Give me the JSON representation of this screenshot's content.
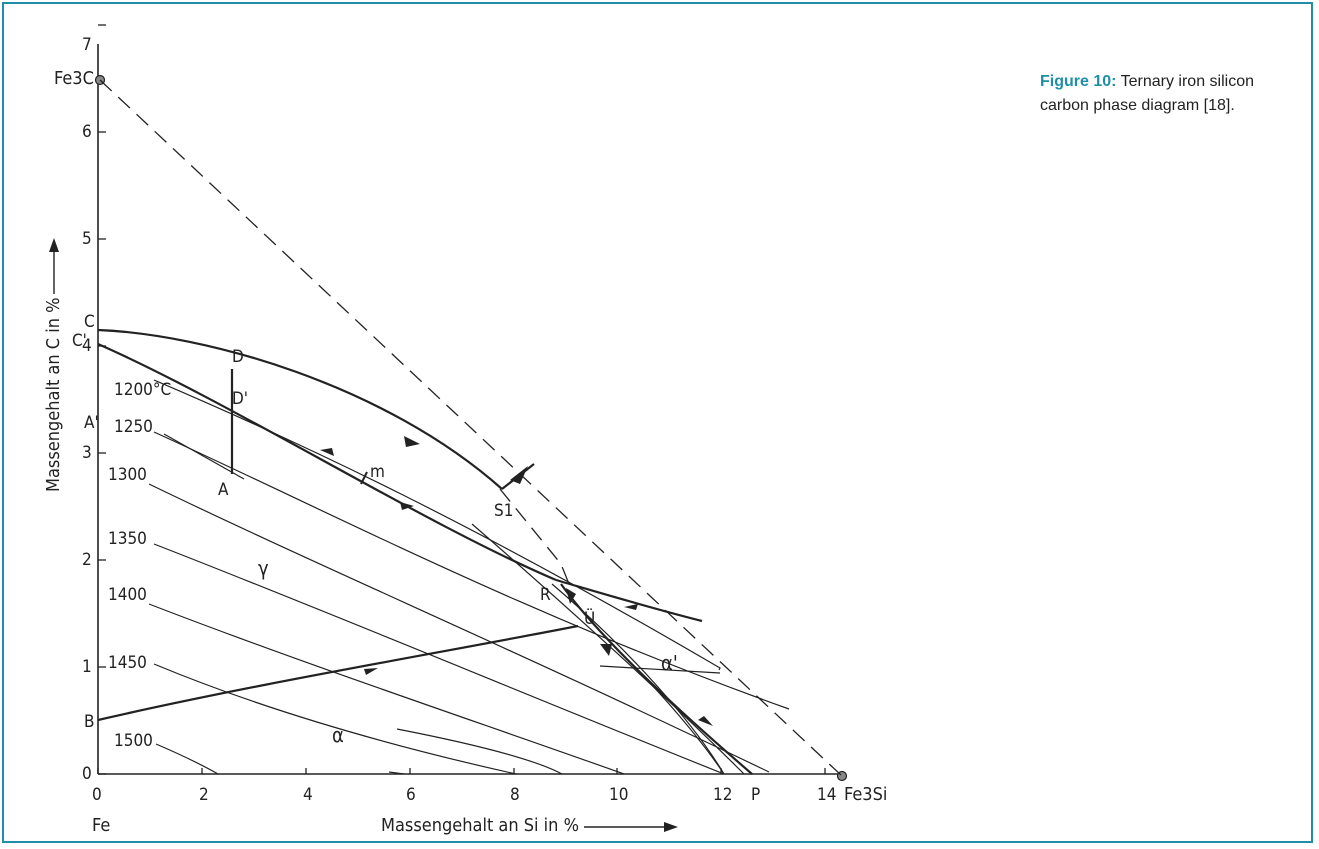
{
  "caption": {
    "label": "Figure 10:",
    "text": "Ternary iron silicon carbon phase diagram [18]."
  },
  "diagram": {
    "x_axis_label": "Massengehalt an Si in %",
    "y_axis_label": "Massengehalt an C in %",
    "x_ticks": [
      "0",
      "2",
      "4",
      "6",
      "8",
      "10",
      "12",
      "14"
    ],
    "y_ticks": [
      "0",
      "1",
      "2",
      "3",
      "4",
      "5",
      "6",
      "7"
    ],
    "corner_labels": {
      "fe": "Fe",
      "fe3c": "Fe3C",
      "fe3si": "Fe3Si"
    },
    "isotherm_labels": [
      "1200°C",
      "1250",
      "1300",
      "1350",
      "1400",
      "1450",
      "1500"
    ],
    "point_labels": {
      "C": "C",
      "C_prime": "C'",
      "D": "D",
      "D_prime": "D'",
      "A": "A",
      "A_prime": "A'",
      "B": "B",
      "m": "m",
      "S1": "S1",
      "R": "R",
      "U": "Ü",
      "P": "P"
    },
    "phase_labels": {
      "gamma": "γ",
      "alpha": "α",
      "alpha_prime": "α'"
    }
  }
}
